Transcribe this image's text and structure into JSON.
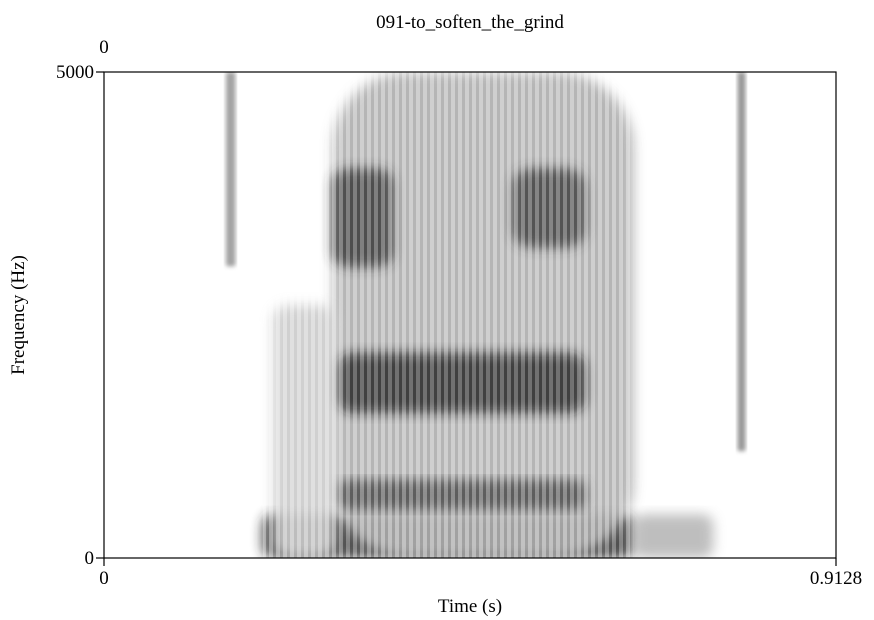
{
  "chart_data": {
    "type": "heatmap",
    "title": "091-to_soften_the_grind",
    "xlabel": "Time (s)",
    "ylabel": "Frequency (Hz)",
    "xlim": [
      0,
      0.9128
    ],
    "ylim": [
      0,
      5000
    ],
    "x_tick_labels": [
      "0",
      "0.9128"
    ],
    "y_tick_labels": [
      "0",
      "5000"
    ],
    "top_left_label": "0",
    "grid": false,
    "colormap": {
      "low": "#ffffff",
      "high": "#000000"
    },
    "regions": [
      {
        "t": [
          0.152,
          0.164
        ],
        "f": [
          3000,
          5000
        ],
        "intensity": 0.4
      },
      {
        "t": [
          0.198,
          0.66
        ],
        "f": [
          0,
          450
        ],
        "intensity": 0.85
      },
      {
        "t": [
          0.285,
          0.66
        ],
        "f": [
          0,
          5000
        ],
        "intensity": 0.32
      },
      {
        "t": [
          0.29,
          0.6
        ],
        "f": [
          1500,
          2100
        ],
        "intensity": 0.92
      },
      {
        "t": [
          0.285,
          0.36
        ],
        "f": [
          3000,
          4000
        ],
        "intensity": 0.82
      },
      {
        "t": [
          0.51,
          0.6
        ],
        "f": [
          3200,
          4000
        ],
        "intensity": 0.78
      },
      {
        "t": [
          0.29,
          0.6
        ],
        "f": [
          500,
          800
        ],
        "intensity": 0.72
      },
      {
        "t": [
          0.21,
          0.29
        ],
        "f": [
          0,
          2600
        ],
        "intensity": 0.2
      },
      {
        "t": [
          0.66,
          0.76
        ],
        "f": [
          0,
          450
        ],
        "intensity": 0.28
      },
      {
        "t": [
          0.79,
          0.8
        ],
        "f": [
          1100,
          5000
        ],
        "intensity": 0.45
      }
    ]
  }
}
